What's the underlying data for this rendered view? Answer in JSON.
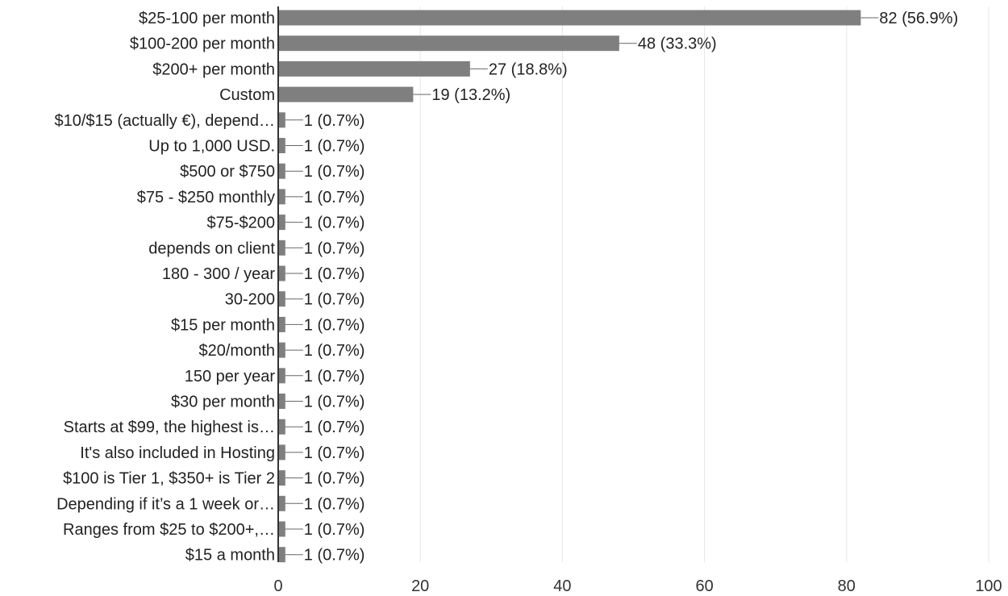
{
  "chart_data": {
    "type": "bar",
    "orientation": "horizontal",
    "categories": [
      "$25-100 per month",
      "$100-200 per month",
      "$200+ per month",
      "Custom",
      "$10/$15 (actually €), depend…",
      "Up to 1,000 USD.",
      "$500 or $750",
      "$75 - $250 monthly",
      "$75-$200",
      "depends on client",
      "180 - 300 / year",
      "30-200",
      "$15 per month",
      "$20/month",
      "150 per year",
      "$30 per month",
      "Starts at $99, the highest is…",
      "It's also included in Hosting",
      "$100 is Tier 1, $350+ is Tier 2",
      "Depending if it’s a 1 week or…",
      "Ranges from $25 to $200+,…",
      "$15 a month"
    ],
    "values": [
      82,
      48,
      27,
      19,
      1,
      1,
      1,
      1,
      1,
      1,
      1,
      1,
      1,
      1,
      1,
      1,
      1,
      1,
      1,
      1,
      1,
      1
    ],
    "data_labels": [
      "82 (56.9%)",
      "48 (33.3%)",
      "27 (18.8%)",
      "19 (13.2%)",
      "1 (0.7%)",
      "1 (0.7%)",
      "1 (0.7%)",
      "1 (0.7%)",
      "1 (0.7%)",
      "1 (0.7%)",
      "1 (0.7%)",
      "1 (0.7%)",
      "1 (0.7%)",
      "1 (0.7%)",
      "1 (0.7%)",
      "1 (0.7%)",
      "1 (0.7%)",
      "1 (0.7%)",
      "1 (0.7%)",
      "1 (0.7%)",
      "1 (0.7%)",
      "1 (0.7%)"
    ],
    "xlim": [
      0,
      100
    ],
    "xticks": [
      0,
      20,
      40,
      60,
      80,
      100
    ],
    "grid": true,
    "title": "",
    "xlabel": "",
    "ylabel": "",
    "colors": {
      "bar": "#7f7f7f",
      "grid": "#e6e6e6",
      "axis": "#333333",
      "text": "#222222"
    }
  }
}
